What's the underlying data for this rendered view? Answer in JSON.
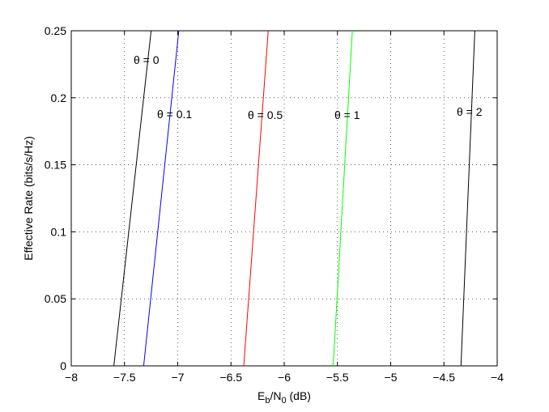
{
  "chart_data": {
    "type": "line",
    "xlabel": [
      "E",
      "b",
      "/N",
      "0",
      " (dB)"
    ],
    "ylabel": "Effective Rate (bits/s/Hz)",
    "series": [
      {
        "name": "θ = 0",
        "color": "#000000",
        "x": [
          -7.6,
          -7.25
        ],
        "values": [
          0,
          0.25
        ]
      },
      {
        "name": "θ = 0.1",
        "color": "#0000ff",
        "x": [
          -7.32,
          -6.99
        ],
        "values": [
          0,
          0.25
        ]
      },
      {
        "name": "θ = 0.5",
        "color": "#ff0000",
        "x": [
          -6.38,
          -6.15
        ],
        "values": [
          0,
          0.25
        ]
      },
      {
        "name": "θ = 1",
        "color": "#00ff00",
        "x": [
          -5.54,
          -5.36
        ],
        "values": [
          0,
          0.25
        ]
      },
      {
        "name": "θ = 2",
        "color": "#000000",
        "x": [
          -4.34,
          -4.21
        ],
        "values": [
          0,
          0.25
        ]
      }
    ],
    "xlim": [
      -8,
      -4
    ],
    "xticks": [
      {
        "value": -8,
        "label": "−8"
      },
      {
        "value": -7.5,
        "label": "−7.5"
      },
      {
        "value": -7,
        "label": "−7"
      },
      {
        "value": -6.5,
        "label": "−6.5"
      },
      {
        "value": -6,
        "label": "−6"
      },
      {
        "value": -5.5,
        "label": "−5.5"
      },
      {
        "value": -5,
        "label": "−5"
      },
      {
        "value": -4.5,
        "label": "−4.5"
      },
      {
        "value": -4,
        "label": "−4"
      }
    ],
    "ylim": [
      0,
      0.25
    ],
    "yticks": [
      0,
      0.05,
      0.1,
      0.15,
      0.2,
      0.25
    ],
    "grid": true
  }
}
